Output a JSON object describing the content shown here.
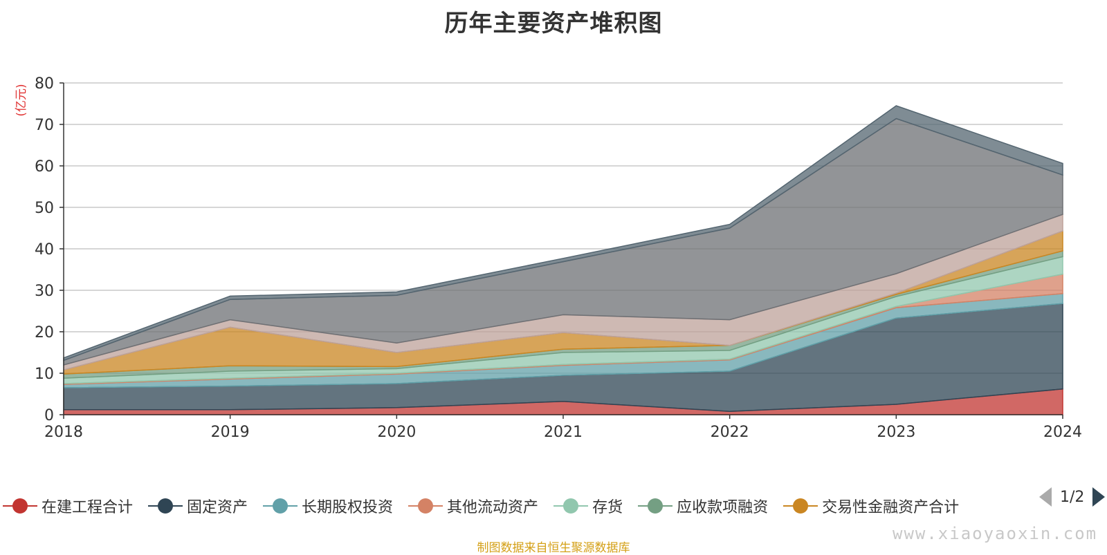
{
  "chart_data": {
    "type": "area",
    "title": "历年主要资产堆积图",
    "ylabel": "(亿元)",
    "xlabel": "",
    "ylim": [
      0,
      80
    ],
    "yticks": [
      0,
      10,
      20,
      30,
      40,
      50,
      60,
      70,
      80
    ],
    "categories": [
      "2018",
      "2019",
      "2020",
      "2021",
      "2022",
      "2023",
      "2024"
    ],
    "stacked": true,
    "grid": true,
    "legend_position": "bottom",
    "series": [
      {
        "name": "在建工程合计",
        "color": "#c23531",
        "values": [
          1.2,
          1.2,
          1.7,
          3.2,
          0.8,
          2.5,
          6.2
        ]
      },
      {
        "name": "固定资产",
        "color": "#2f4554",
        "values": [
          5.3,
          5.7,
          5.8,
          6.3,
          9.7,
          20.8,
          20.6
        ]
      },
      {
        "name": "长期股权投资",
        "color": "#61a0a8",
        "values": [
          0.8,
          1.7,
          2.3,
          2.4,
          2.7,
          2.5,
          2.4
        ]
      },
      {
        "name": "其他流动资产",
        "color": "#d48265",
        "values": [
          0.2,
          0.2,
          0.2,
          0.2,
          0.2,
          0.3,
          4.7
        ]
      },
      {
        "name": "存货",
        "color": "#91c7ae",
        "values": [
          1.3,
          1.7,
          1.1,
          2.9,
          2.1,
          2.4,
          4.2
        ]
      },
      {
        "name": "应收款项融资",
        "color": "#749f83",
        "values": [
          1.0,
          1.3,
          0.5,
          0.8,
          1.2,
          0.5,
          1.4
        ]
      },
      {
        "name": "交易性金融资产合计",
        "color": "#ca8622",
        "values": [
          1.0,
          9.3,
          3.4,
          4.0,
          0.0,
          0.3,
          4.8
        ]
      },
      {
        "name": "",
        "color": "#bda29a",
        "values": [
          1.2,
          1.8,
          2.3,
          4.3,
          6.2,
          4.7,
          4.0
        ]
      },
      {
        "name": "",
        "color": "#6e7074",
        "values": [
          1.1,
          4.9,
          11.5,
          12.8,
          22.1,
          37.4,
          9.5
        ]
      },
      {
        "name": "",
        "color": "#546570",
        "values": [
          0.6,
          0.8,
          0.8,
          0.8,
          0.9,
          3.1,
          2.8
        ]
      }
    ]
  },
  "legend": {
    "page_text": "1/2"
  },
  "footer": {
    "source": "制图数据来自恒生聚源数据库",
    "watermark": "www.xiaoyaoxin.com"
  }
}
